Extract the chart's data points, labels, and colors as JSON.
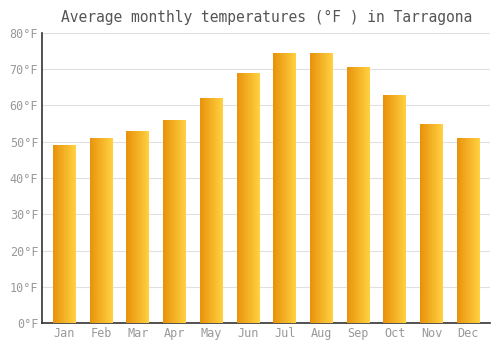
{
  "title": "Average monthly temperatures (°F ) in Tarragona",
  "months": [
    "Jan",
    "Feb",
    "Mar",
    "Apr",
    "May",
    "Jun",
    "Jul",
    "Aug",
    "Sep",
    "Oct",
    "Nov",
    "Dec"
  ],
  "values": [
    49,
    51,
    53,
    56,
    62,
    69,
    74.5,
    74.5,
    70.5,
    63,
    55,
    51
  ],
  "bar_color_left": "#E8920A",
  "bar_color_right": "#FFD040",
  "background_color": "#FFFFFF",
  "plot_bg_color": "#FFFFFF",
  "grid_color": "#E0E0E0",
  "tick_color": "#999999",
  "title_color": "#555555",
  "spine_color": "#333333",
  "ylim": [
    0,
    80
  ],
  "yticks": [
    0,
    10,
    20,
    30,
    40,
    50,
    60,
    70,
    80
  ],
  "ytick_labels": [
    "0°F",
    "10°F",
    "20°F",
    "30°F",
    "40°F",
    "50°F",
    "60°F",
    "70°F",
    "80°F"
  ],
  "title_fontsize": 10.5,
  "tick_fontsize": 8.5,
  "bar_width": 0.62
}
